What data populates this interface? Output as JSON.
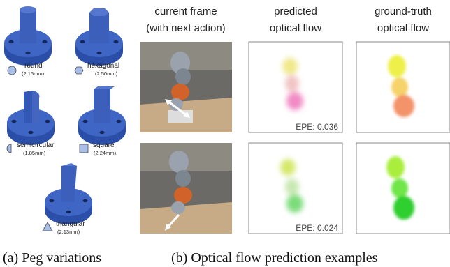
{
  "pegs": [
    {
      "name": "round",
      "size": "(2.15mm)"
    },
    {
      "name": "hexagonal",
      "size": "(2.50mm)"
    },
    {
      "name": "semicircular",
      "size": "(1.85mm)"
    },
    {
      "name": "square",
      "size": "(2.24mm)"
    },
    {
      "name": "triangular",
      "size": "(2.13mm)"
    }
  ],
  "columns": [
    {
      "line1": "current frame",
      "line2": "(with next action)"
    },
    {
      "line1": "predicted",
      "line2": "optical flow"
    },
    {
      "line1": "ground-truth",
      "line2": "optical flow"
    }
  ],
  "examples": [
    {
      "epe": "EPE: 0.036"
    },
    {
      "epe": "EPE: 0.024"
    }
  ],
  "captions": {
    "a": "(a) Peg variations",
    "b": "(b) Optical flow prediction examples"
  }
}
